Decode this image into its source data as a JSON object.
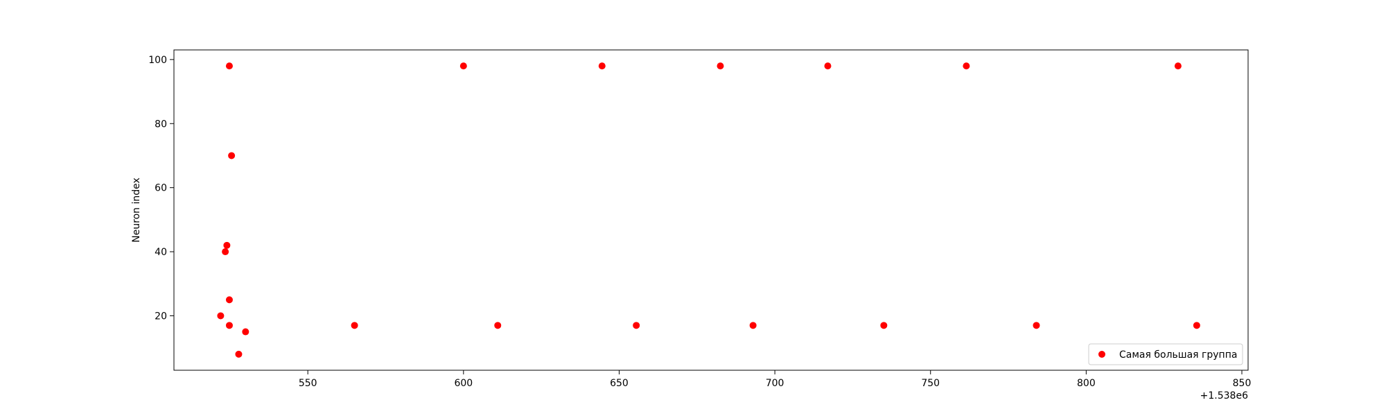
{
  "chart_data": {
    "type": "scatter",
    "title": "",
    "xlabel": "",
    "ylabel": "Neuron index",
    "x_offset_label": "+1.538e6",
    "xlim": [
      1538507,
      1538852
    ],
    "ylim": [
      3,
      103
    ],
    "xticks": [
      550,
      600,
      650,
      700,
      750,
      800,
      850
    ],
    "yticks": [
      20,
      40,
      60,
      80,
      100
    ],
    "grid": false,
    "legend_position": "lower right",
    "series": [
      {
        "name": "Самая большая группа",
        "color": "#ff0000",
        "marker": "circle",
        "points": [
          {
            "x": 1538522,
            "y": 20
          },
          {
            "x": 1538523.5,
            "y": 40
          },
          {
            "x": 1538524,
            "y": 42
          },
          {
            "x": 1538524.8,
            "y": 98
          },
          {
            "x": 1538524.8,
            "y": 25
          },
          {
            "x": 1538524.8,
            "y": 17
          },
          {
            "x": 1538525.5,
            "y": 70
          },
          {
            "x": 1538527.8,
            "y": 8
          },
          {
            "x": 1538530,
            "y": 15
          },
          {
            "x": 1538565,
            "y": 17
          },
          {
            "x": 1538600,
            "y": 98
          },
          {
            "x": 1538611,
            "y": 17
          },
          {
            "x": 1538644.5,
            "y": 98
          },
          {
            "x": 1538655.5,
            "y": 17
          },
          {
            "x": 1538682.5,
            "y": 98
          },
          {
            "x": 1538693,
            "y": 17
          },
          {
            "x": 1538717,
            "y": 98
          },
          {
            "x": 1538735,
            "y": 17
          },
          {
            "x": 1538761.5,
            "y": 98
          },
          {
            "x": 1538784,
            "y": 17
          },
          {
            "x": 1538829.5,
            "y": 98
          },
          {
            "x": 1538835.5,
            "y": 17
          }
        ]
      }
    ]
  }
}
